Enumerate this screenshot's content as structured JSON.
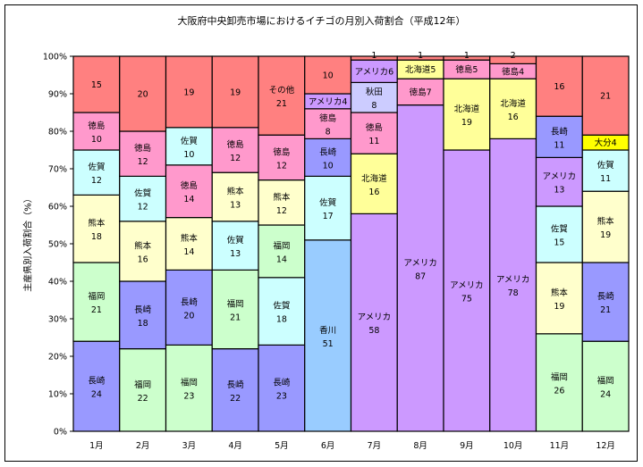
{
  "chart_data": {
    "type": "bar",
    "stacked": true,
    "percent": true,
    "title": "大阪府中央卸売市場におけるイチゴの月別入荷割合（平成12年）",
    "xlabel": "",
    "ylabel": "主産県別入荷割合（%）",
    "ylim": [
      0,
      100
    ],
    "yticks": [
      "0%",
      "10%",
      "20%",
      "30%",
      "40%",
      "50%",
      "60%",
      "70%",
      "80%",
      "90%",
      "100%"
    ],
    "grid": false,
    "categories": [
      "1月",
      "2月",
      "3月",
      "4月",
      "5月",
      "6月",
      "7月",
      "8月",
      "9月",
      "10月",
      "11月",
      "12月"
    ],
    "colors": {
      "長崎": "#9999ff",
      "福岡": "#ccffcc",
      "熊本": "#ffffcc",
      "佐賀": "#ccffff",
      "徳島": "#ff99cc",
      "その他": "#ff8080",
      "香川": "#99ccff",
      "アメリカ": "#cc99ff",
      "北海道": "#ffff99",
      "秋田": "#ccccff",
      "大分": "#ffff00"
    },
    "bars": [
      [
        {
          "name": "長崎",
          "value": 24,
          "label": "長崎"
        },
        {
          "name": "福岡",
          "value": 21,
          "label": "福岡"
        },
        {
          "name": "熊本",
          "value": 18,
          "label": "熊本"
        },
        {
          "name": "佐賀",
          "value": 12,
          "label": "佐賀"
        },
        {
          "name": "徳島",
          "value": 10,
          "label": "徳島"
        },
        {
          "name": "その他",
          "value": 15,
          "label": ""
        }
      ],
      [
        {
          "name": "福岡",
          "value": 22,
          "label": "福岡"
        },
        {
          "name": "長崎",
          "value": 18,
          "label": "長崎"
        },
        {
          "name": "熊本",
          "value": 16,
          "label": "熊本"
        },
        {
          "name": "佐賀",
          "value": 12,
          "label": "佐賀"
        },
        {
          "name": "徳島",
          "value": 12,
          "label": "徳島"
        },
        {
          "name": "その他",
          "value": 20,
          "label": ""
        }
      ],
      [
        {
          "name": "福岡",
          "value": 23,
          "label": "福岡"
        },
        {
          "name": "長崎",
          "value": 20,
          "label": "長崎"
        },
        {
          "name": "熊本",
          "value": 14,
          "label": "熊本"
        },
        {
          "name": "徳島",
          "value": 14,
          "label": "徳島"
        },
        {
          "name": "佐賀",
          "value": 10,
          "label": "佐賀"
        },
        {
          "name": "その他",
          "value": 19,
          "label": ""
        }
      ],
      [
        {
          "name": "長崎",
          "value": 22,
          "label": "長崎"
        },
        {
          "name": "福岡",
          "value": 21,
          "label": "福岡"
        },
        {
          "name": "佐賀",
          "value": 13,
          "label": "佐賀"
        },
        {
          "name": "熊本",
          "value": 13,
          "label": "熊本"
        },
        {
          "name": "徳島",
          "value": 12,
          "label": "徳島"
        },
        {
          "name": "その他",
          "value": 19,
          "label": ""
        }
      ],
      [
        {
          "name": "長崎",
          "value": 23,
          "label": "長崎"
        },
        {
          "name": "佐賀",
          "value": 18,
          "label": "佐賀"
        },
        {
          "name": "福岡",
          "value": 14,
          "label": "福岡"
        },
        {
          "name": "熊本",
          "value": 12,
          "label": "熊本"
        },
        {
          "name": "徳島",
          "value": 12,
          "label": "徳島"
        },
        {
          "name": "その他",
          "value": 21,
          "label": "その他"
        }
      ],
      [
        {
          "name": "香川",
          "value": 51,
          "label": "香川"
        },
        {
          "name": "佐賀",
          "value": 17,
          "label": "佐賀"
        },
        {
          "name": "長崎",
          "value": 10,
          "label": "長崎"
        },
        {
          "name": "徳島",
          "value": 8,
          "label": "徳島"
        },
        {
          "name": "アメリカ",
          "value": 4,
          "label": "アメリカ",
          "inline": true
        },
        {
          "name": "その他",
          "value": 10,
          "label": ""
        }
      ],
      [
        {
          "name": "アメリカ",
          "value": 58,
          "label": "アメリカ"
        },
        {
          "name": "北海道",
          "value": 16,
          "label": "北海道"
        },
        {
          "name": "徳島",
          "value": 11,
          "label": "徳島"
        },
        {
          "name": "秋田",
          "value": 8,
          "label": "秋田"
        },
        {
          "name": "アメリカ",
          "value": 6,
          "label": "アメリカ",
          "inline": true
        },
        {
          "name": "その他",
          "value": 1,
          "label": ""
        }
      ],
      [
        {
          "name": "アメリカ",
          "value": 87,
          "label": "アメリカ"
        },
        {
          "name": "徳島",
          "value": 7,
          "label": "徳島",
          "inline": true
        },
        {
          "name": "北海道",
          "value": 5,
          "label": "北海道",
          "inline": true
        },
        {
          "name": "その他",
          "value": 1,
          "label": ""
        }
      ],
      [
        {
          "name": "アメリカ",
          "value": 75,
          "label": "アメリカ"
        },
        {
          "name": "北海道",
          "value": 19,
          "label": "北海道"
        },
        {
          "name": "徳島",
          "value": 5,
          "label": "徳島",
          "inline": true
        },
        {
          "name": "その他",
          "value": 1,
          "label": ""
        }
      ],
      [
        {
          "name": "アメリカ",
          "value": 78,
          "label": "アメリカ"
        },
        {
          "name": "北海道",
          "value": 16,
          "label": "北海道"
        },
        {
          "name": "徳島",
          "value": 4,
          "label": "徳島",
          "inline": true
        },
        {
          "name": "その他",
          "value": 2,
          "label": ""
        }
      ],
      [
        {
          "name": "福岡",
          "value": 26,
          "label": "福岡"
        },
        {
          "name": "熊本",
          "value": 19,
          "label": "熊本"
        },
        {
          "name": "佐賀",
          "value": 15,
          "label": "佐賀"
        },
        {
          "name": "アメリカ",
          "value": 13,
          "label": "アメリカ"
        },
        {
          "name": "長崎",
          "value": 11,
          "label": "長崎"
        },
        {
          "name": "その他",
          "value": 16,
          "label": ""
        }
      ],
      [
        {
          "name": "福岡",
          "value": 24,
          "label": "福岡"
        },
        {
          "name": "長崎",
          "value": 21,
          "label": "長崎"
        },
        {
          "name": "熊本",
          "value": 19,
          "label": "熊本"
        },
        {
          "name": "佐賀",
          "value": 11,
          "label": "佐賀"
        },
        {
          "name": "大分",
          "value": 4,
          "label": "大分",
          "inline": true
        },
        {
          "name": "その他",
          "value": 21,
          "label": ""
        }
      ]
    ]
  }
}
